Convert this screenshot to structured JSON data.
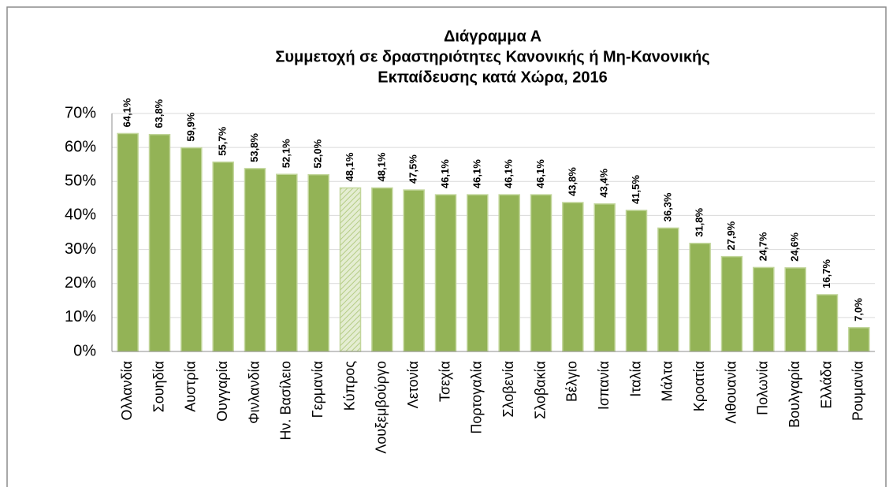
{
  "chart_data": {
    "type": "bar",
    "title": [
      "Διάγραμμα Α",
      "Συμμετοχή σε δραστηριότητες Κανονικής ή Μη-Κανονικής",
      "Εκπαίδευσης κατά Χώρα, 2016"
    ],
    "categories": [
      "Ολλανδία",
      "Σουηδία",
      "Αυστρία",
      "Ουγγαρία",
      "Φινλανδία",
      "Ην. Βασίλειο",
      "Γερμανία",
      "Κύπρος",
      "Λουξεμβούργο",
      "Λετονία",
      "Τσεχία",
      "Πορτογαλία",
      "Σλοβενία",
      "Σλοβακία",
      "Βέλγιο",
      "Ισπανία",
      "Ιταλία",
      "Μάλτα",
      "Κροατία",
      "Λιθουανία",
      "Πολωνία",
      "Βουλγαρία",
      "Ελλάδα",
      "Ρουμανία"
    ],
    "values": [
      64.1,
      63.8,
      59.9,
      55.7,
      53.8,
      52.1,
      52.0,
      48.1,
      48.1,
      47.5,
      46.1,
      46.1,
      46.1,
      46.1,
      43.8,
      43.4,
      41.5,
      36.3,
      31.8,
      27.9,
      24.7,
      24.6,
      16.7,
      7.0
    ],
    "value_labels": [
      "64,1%",
      "63,8%",
      "59,9%",
      "55,7%",
      "53,8%",
      "52,1%",
      "52,0%",
      "48,1%",
      "48,1%",
      "47,5%",
      "46,1%",
      "46,1%",
      "46,1%",
      "46,1%",
      "43,8%",
      "43,4%",
      "41,5%",
      "36,3%",
      "31,8%",
      "27,9%",
      "24,7%",
      "24,6%",
      "16,7%",
      "7,0%"
    ],
    "hatched": [
      false,
      false,
      false,
      false,
      false,
      false,
      false,
      true,
      false,
      false,
      false,
      false,
      false,
      false,
      false,
      false,
      false,
      false,
      false,
      false,
      false,
      false,
      false,
      false
    ],
    "color": "#93b356",
    "ylim": [
      0,
      70
    ],
    "yticks": [
      {
        "value": 0,
        "label": "0%"
      },
      {
        "value": 10,
        "label": "10%"
      },
      {
        "value": 20,
        "label": "20%"
      },
      {
        "value": 30,
        "label": "30%"
      },
      {
        "value": 40,
        "label": "40%"
      },
      {
        "value": 50,
        "label": "50%"
      },
      {
        "value": 60,
        "label": "60%"
      },
      {
        "value": 70,
        "label": "70%"
      }
    ],
    "grid": true
  }
}
